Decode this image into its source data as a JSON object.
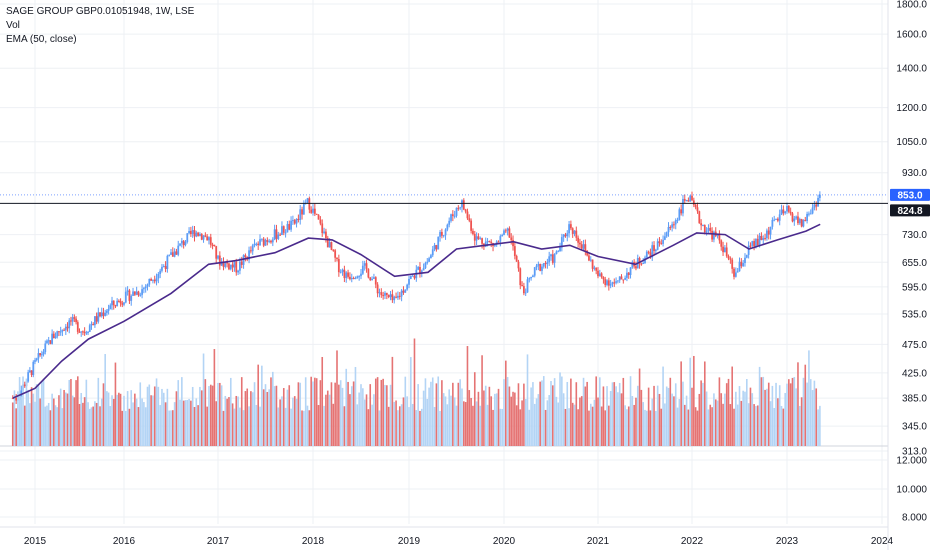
{
  "legend": {
    "symbol": "SAGE GROUP GBP0.01051948, 1W, LSE",
    "vol": "Vol",
    "ema": "EMA (50, close)"
  },
  "colors": {
    "up": "#5b9cf6",
    "down": "#ef5350",
    "vol_up": "#b3d4f5",
    "vol_down": "#e57373",
    "ema": "#4a2a8c",
    "hline": "#131722",
    "last_price_bg": "#2962ff",
    "grid": "#eef0f4"
  },
  "price_axis": {
    "scale": "log",
    "ticks": [
      "1800.0",
      "1600.0",
      "1400.0",
      "1200.0",
      "1050.0",
      "930.0",
      "730.0",
      "655.0",
      "595.0",
      "535.0",
      "475.0",
      "425.0",
      "385.0",
      "345.0",
      "313.0"
    ],
    "last_price": "853.0",
    "level_label": "824.8"
  },
  "volume_axis": {
    "ticks": [
      "12.000",
      "10.000",
      "8.000"
    ]
  },
  "time_axis": {
    "labels": [
      "2015",
      "2016",
      "2017",
      "2018",
      "2019",
      "2020",
      "2021",
      "2022",
      "2023",
      "2024"
    ]
  },
  "chart_data": {
    "type": "candlestick",
    "title": "SAGE GROUP GBP0.01051948, 1W, LSE",
    "x_range": [
      2014.75,
      2024.1
    ],
    "y_scale": "log",
    "y_range": [
      300,
      1900
    ],
    "horizontal_line": 824.8,
    "last_price": 853.0,
    "close_path": [
      [
        2014.8,
        385
      ],
      [
        2015.0,
        440
      ],
      [
        2015.2,
        490
      ],
      [
        2015.4,
        520
      ],
      [
        2015.55,
        500
      ],
      [
        2015.8,
        545
      ],
      [
        2016.0,
        570
      ],
      [
        2016.2,
        590
      ],
      [
        2016.4,
        640
      ],
      [
        2016.6,
        700
      ],
      [
        2016.75,
        740
      ],
      [
        2016.9,
        720
      ],
      [
        2017.0,
        660
      ],
      [
        2017.2,
        640
      ],
      [
        2017.4,
        700
      ],
      [
        2017.6,
        730
      ],
      [
        2017.8,
        760
      ],
      [
        2017.95,
        830
      ],
      [
        2018.1,
        740
      ],
      [
        2018.25,
        650
      ],
      [
        2018.35,
        620
      ],
      [
        2018.55,
        640
      ],
      [
        2018.7,
        580
      ],
      [
        2018.85,
        560
      ],
      [
        2019.0,
        610
      ],
      [
        2019.2,
        660
      ],
      [
        2019.4,
        760
      ],
      [
        2019.55,
        830
      ],
      [
        2019.7,
        720
      ],
      [
        2019.9,
        700
      ],
      [
        2020.05,
        740
      ],
      [
        2020.2,
        580
      ],
      [
        2020.35,
        640
      ],
      [
        2020.55,
        670
      ],
      [
        2020.7,
        760
      ],
      [
        2020.85,
        690
      ],
      [
        2021.0,
        620
      ],
      [
        2021.2,
        600
      ],
      [
        2021.35,
        640
      ],
      [
        2021.6,
        690
      ],
      [
        2021.8,
        760
      ],
      [
        2021.95,
        850
      ],
      [
        2022.1,
        760
      ],
      [
        2022.3,
        710
      ],
      [
        2022.45,
        620
      ],
      [
        2022.6,
        690
      ],
      [
        2022.75,
        720
      ],
      [
        2022.9,
        780
      ],
      [
        2023.0,
        800
      ],
      [
        2023.15,
        760
      ],
      [
        2023.25,
        800
      ],
      [
        2023.35,
        853
      ]
    ],
    "ema_50": [
      [
        2014.75,
        385
      ],
      [
        2015.0,
        400
      ],
      [
        2015.3,
        445
      ],
      [
        2015.6,
        485
      ],
      [
        2016.0,
        520
      ],
      [
        2016.5,
        580
      ],
      [
        2016.9,
        650
      ],
      [
        2017.2,
        660
      ],
      [
        2017.6,
        680
      ],
      [
        2017.95,
        720
      ],
      [
        2018.2,
        715
      ],
      [
        2018.5,
        675
      ],
      [
        2018.85,
        620
      ],
      [
        2019.2,
        630
      ],
      [
        2019.5,
        690
      ],
      [
        2019.8,
        700
      ],
      [
        2020.1,
        710
      ],
      [
        2020.4,
        690
      ],
      [
        2020.7,
        700
      ],
      [
        2021.0,
        670
      ],
      [
        2021.4,
        650
      ],
      [
        2021.8,
        700
      ],
      [
        2022.05,
        735
      ],
      [
        2022.35,
        730
      ],
      [
        2022.6,
        690
      ],
      [
        2022.9,
        715
      ],
      [
        2023.2,
        740
      ],
      [
        2023.35,
        760
      ]
    ],
    "volume_axis_ticks": [
      "12.000",
      "10.000",
      "8.000"
    ],
    "x_tick_labels": [
      "2015",
      "2016",
      "2017",
      "2018",
      "2019",
      "2020",
      "2021",
      "2022",
      "2023",
      "2024"
    ]
  }
}
